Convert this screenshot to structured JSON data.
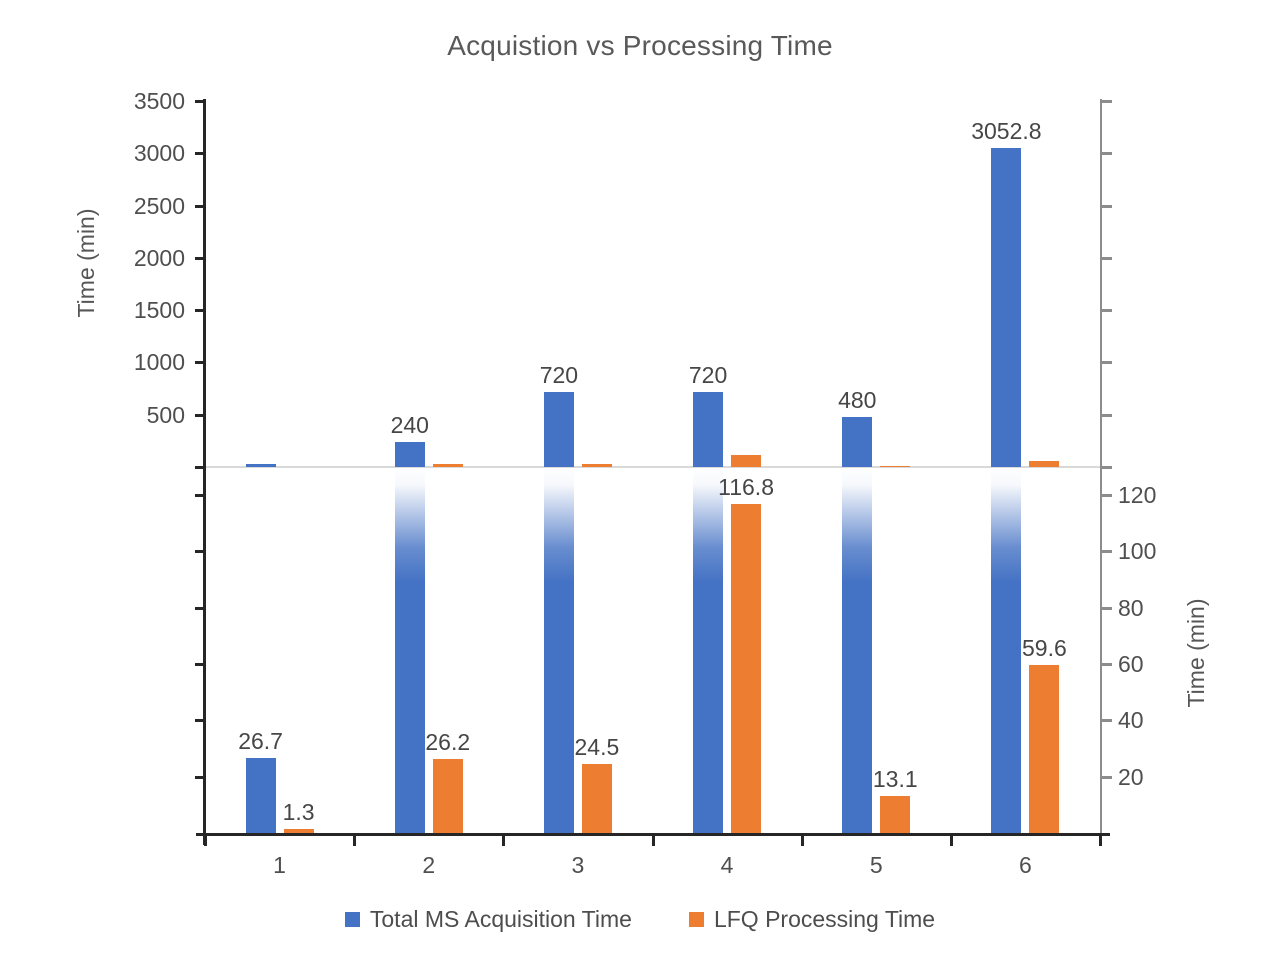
{
  "chart_data": {
    "type": "bar",
    "title": "Acquistion vs Processing Time",
    "categories": [
      "1",
      "2",
      "3",
      "4",
      "5",
      "6"
    ],
    "series": [
      {
        "name": "Total MS Acquisition Time",
        "color": "#4472C4",
        "values": [
          26.7,
          240,
          720,
          720,
          480,
          3052.8
        ]
      },
      {
        "name": "LFQ Processing Time",
        "color": "#ED7D31",
        "values": [
          1.3,
          26.2,
          24.5,
          116.8,
          13.1,
          59.6
        ]
      }
    ],
    "left_axis": {
      "label": "Time (min)",
      "min": 0,
      "max": 3500,
      "ticks": [
        500,
        1000,
        1500,
        2000,
        2500,
        3000,
        3500
      ]
    },
    "right_axis": {
      "label": "Time (min)",
      "min": 0,
      "max": 130,
      "ticks": [
        20,
        40,
        60,
        80,
        100,
        120
      ]
    },
    "layout": "broken dual panel: top half plots values on the left axis (0-3500), bottom half plots values on the right axis (0-130); bars exceeding the bottom-axis max fade to white at the divider",
    "grid": "off",
    "legend_position": "bottom",
    "colors": {
      "divider": "#D9D9D9",
      "left_axis_line": "#262626",
      "right_axis_line": "#8c8c8c",
      "x_axis_line": "#262626",
      "text": "#4f4f4f",
      "title_text": "#595959"
    }
  }
}
